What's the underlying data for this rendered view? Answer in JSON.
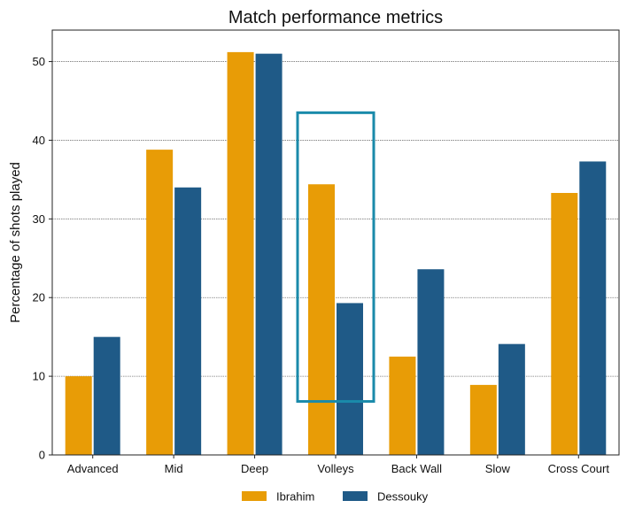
{
  "chart_data": {
    "type": "bar",
    "title": "Match performance metrics",
    "xlabel": "",
    "ylabel": "Percentage of shots played",
    "categories": [
      "Advanced",
      "Mid",
      "Deep",
      "Volleys",
      "Back Wall",
      "Slow",
      "Cross Court"
    ],
    "series": [
      {
        "name": "Ibrahim",
        "color": "#e89c06",
        "values": [
          10.0,
          38.8,
          51.2,
          34.4,
          12.5,
          8.9,
          33.3
        ]
      },
      {
        "name": "Dessouky",
        "color": "#1f5a87",
        "values": [
          15.0,
          34.0,
          51.0,
          19.3,
          23.6,
          14.1,
          37.3
        ]
      }
    ],
    "ylim": [
      0,
      54
    ],
    "yticks": [
      0,
      10,
      20,
      30,
      40,
      50
    ],
    "grid": "y",
    "legend": "bottom-center",
    "highlight": {
      "category": "Volleys",
      "y_range": [
        6.8,
        43.5
      ],
      "color": "#1a8aaa"
    }
  }
}
